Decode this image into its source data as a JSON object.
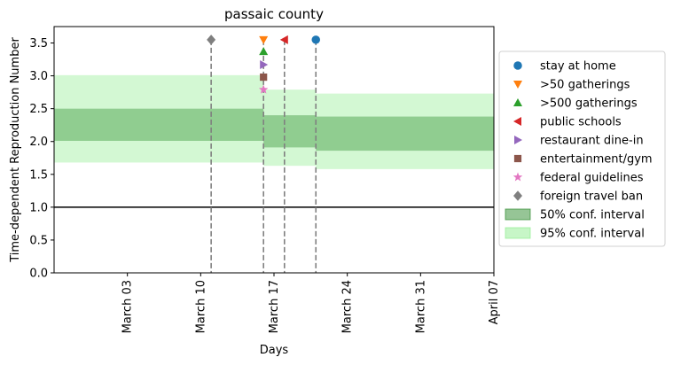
{
  "chart_data": {
    "type": "line",
    "title": "passaic county",
    "xlabel": "Days",
    "ylabel": "Time-dependent Reproduction Number",
    "xlim": [
      "2020-02-25",
      "2020-04-07"
    ],
    "ylim": [
      0,
      3.75
    ],
    "xticks": [
      {
        "date": "2020-03-03",
        "label": "March 03"
      },
      {
        "date": "2020-03-10",
        "label": "March 10"
      },
      {
        "date": "2020-03-17",
        "label": "March 17"
      },
      {
        "date": "2020-03-24",
        "label": "March 24"
      },
      {
        "date": "2020-03-31",
        "label": "March 31"
      },
      {
        "date": "2020-04-07",
        "label": "April 07"
      }
    ],
    "yticks": [
      0.0,
      0.5,
      1.0,
      1.5,
      2.0,
      2.5,
      3.0,
      3.5
    ],
    "ytick_labels": [
      "0.0",
      "0.5",
      "1.0",
      "1.5",
      "2.0",
      "2.5",
      "3.0",
      "3.5"
    ],
    "reference_line": {
      "y": 1.0,
      "color": "#000000"
    },
    "bands": [
      {
        "name": "95% conf. interval",
        "color": "#90ee90",
        "opacity": 0.4,
        "segments": [
          {
            "x": [
              "2020-02-25",
              "2020-03-16"
            ],
            "lower": 1.68,
            "upper": 3.01
          },
          {
            "x": [
              "2020-03-16",
              "2020-03-21"
            ],
            "lower": 1.63,
            "upper": 2.79
          },
          {
            "x": [
              "2020-03-21",
              "2020-04-07"
            ],
            "lower": 1.58,
            "upper": 2.73
          }
        ]
      },
      {
        "name": "50% conf. interval",
        "color": "#2e8b2e",
        "opacity": 0.4,
        "segments": [
          {
            "x": [
              "2020-02-25",
              "2020-03-16"
            ],
            "lower": 2.01,
            "upper": 2.5
          },
          {
            "x": [
              "2020-03-16",
              "2020-03-21"
            ],
            "lower": 1.91,
            "upper": 2.4
          },
          {
            "x": [
              "2020-03-21",
              "2020-04-07"
            ],
            "lower": 1.86,
            "upper": 2.38
          }
        ]
      }
    ],
    "events": [
      {
        "name": "stay at home",
        "date": "2020-03-21",
        "y": 3.55,
        "marker": "circle",
        "color": "#1f77b4"
      },
      {
        "name": ">50 gatherings",
        "date": "2020-03-16",
        "y": 3.55,
        "marker": "triangle-down",
        "color": "#ff7f0e"
      },
      {
        "name": ">500 gatherings",
        "date": "2020-03-16",
        "y": 3.37,
        "marker": "triangle-up",
        "color": "#2ca02c"
      },
      {
        "name": "public schools",
        "date": "2020-03-18",
        "y": 3.55,
        "marker": "triangle-left",
        "color": "#d62728"
      },
      {
        "name": "restaurant dine-in",
        "date": "2020-03-16",
        "y": 3.17,
        "marker": "triangle-right",
        "color": "#9467bd"
      },
      {
        "name": "entertainment/gym",
        "date": "2020-03-16",
        "y": 2.98,
        "marker": "square",
        "color": "#8c564b"
      },
      {
        "name": "federal guidelines",
        "date": "2020-03-16",
        "y": 2.79,
        "marker": "star",
        "color": "#e377c2"
      },
      {
        "name": "foreign travel ban",
        "date": "2020-03-11",
        "y": 3.55,
        "marker": "diamond",
        "color": "#7f7f7f"
      }
    ],
    "event_lines": [
      "2020-03-11",
      "2020-03-16",
      "2020-03-18",
      "2020-03-21"
    ],
    "legend_position": "right",
    "grid": false
  }
}
